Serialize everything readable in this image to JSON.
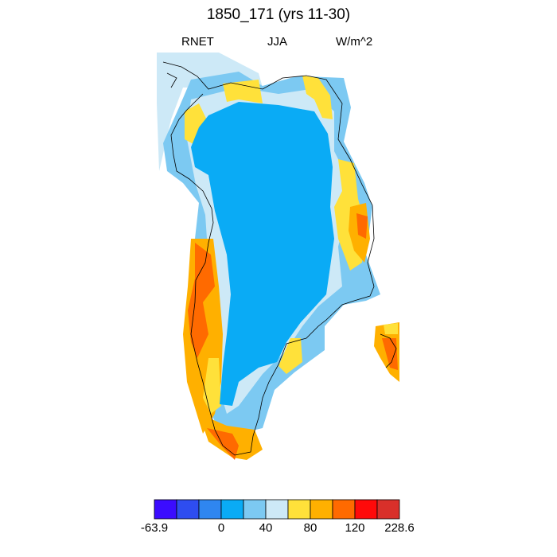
{
  "title": "1850_171 (yrs 11-30)",
  "subtitle": {
    "left": "RNET",
    "center": "JJA",
    "right": "W/m^2"
  },
  "colorbar": {
    "colors": [
      "#3b0cff",
      "#2e4df0",
      "#2f86f0",
      "#0aabf5",
      "#7cc9f2",
      "#cde9f7",
      "#ffe13a",
      "#ffb000",
      "#ff6a00",
      "#ff0a0a",
      "#d9302a"
    ],
    "labels": [
      "-63.9",
      "0",
      "40",
      "80",
      "120",
      "228.6"
    ]
  },
  "map_colors": {
    "ice": "#0aabf5",
    "margin_blue": "#7cc9f2",
    "pale": "#cde9f7",
    "yellow": "#ffe13a",
    "orange": "#ffb000",
    "red_orange": "#ff6a00",
    "outline": "#000000"
  }
}
